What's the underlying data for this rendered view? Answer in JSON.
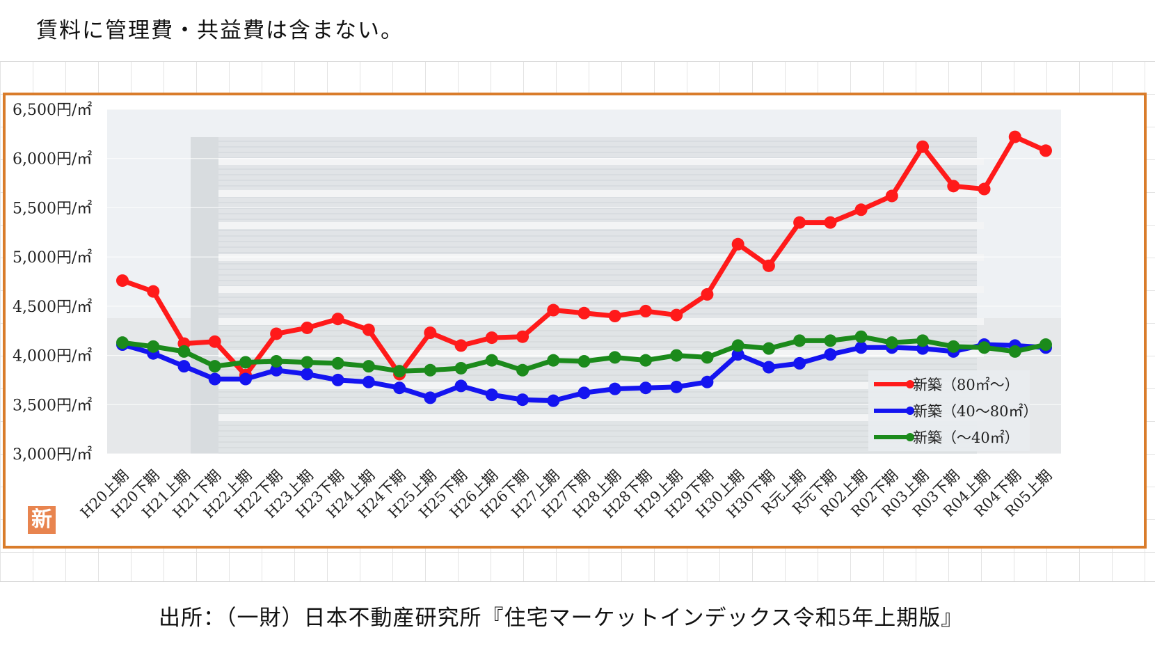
{
  "note": "賃料に管理費・共益費は含まない。",
  "source": "出所：（一財）日本不動産研究所『住宅マーケットインデックス令和5年上期版』",
  "badge_text": "新",
  "chart_data": {
    "type": "line",
    "categories": [
      "H20上期",
      "H20下期",
      "H21上期",
      "H21下期",
      "H22上期",
      "H22下期",
      "H23上期",
      "H23下期",
      "H24上期",
      "H24下期",
      "H25上期",
      "H25下期",
      "H26上期",
      "H26下期",
      "H27上期",
      "H27下期",
      "H28上期",
      "H28下期",
      "H29上期",
      "H29下期",
      "H30上期",
      "H30下期",
      "R元上期",
      "R元下期",
      "R02上期",
      "R02下期",
      "R03上期",
      "R03下期",
      "R04上期",
      "R04下期",
      "R05上期"
    ],
    "ylim": [
      3000,
      6500
    ],
    "yticks": [
      3000,
      3500,
      4000,
      4500,
      5000,
      5500,
      6000,
      6500
    ],
    "ytick_labels": [
      "3,000円/㎡",
      "3,500円/㎡",
      "4,000円/㎡",
      "4,500円/㎡",
      "5,000円/㎡",
      "5,500円/㎡",
      "6,000円/㎡",
      "6,500円/㎡"
    ],
    "legend_position": "bottom-right",
    "series": [
      {
        "name": "新築（80㎡～）",
        "color": "#ff1a1a",
        "values": [
          4760,
          4650,
          4120,
          4140,
          3800,
          4220,
          4280,
          4370,
          4260,
          3810,
          4230,
          4100,
          4180,
          4190,
          4460,
          4430,
          4400,
          4450,
          4410,
          4620,
          5130,
          4910,
          5350,
          5350,
          5480,
          5620,
          6120,
          5720,
          5690,
          6220,
          6080
        ]
      },
      {
        "name": "新築（40～80㎡）",
        "color": "#1414f0",
        "values": [
          4110,
          4020,
          3890,
          3760,
          3760,
          3850,
          3810,
          3750,
          3730,
          3670,
          3570,
          3690,
          3600,
          3550,
          3540,
          3620,
          3660,
          3670,
          3680,
          3730,
          4010,
          3880,
          3920,
          4010,
          4080,
          4080,
          4070,
          4040,
          4110,
          4100,
          4080
        ]
      },
      {
        "name": "新築（～40㎡）",
        "color": "#1b8a1b",
        "values": [
          4130,
          4090,
          4040,
          3890,
          3930,
          3940,
          3930,
          3920,
          3890,
          3840,
          3850,
          3870,
          3950,
          3850,
          3950,
          3940,
          3980,
          3950,
          4000,
          3980,
          4100,
          4070,
          4150,
          4150,
          4190,
          4130,
          4150,
          4090,
          4080,
          4040,
          4110
        ]
      }
    ]
  }
}
